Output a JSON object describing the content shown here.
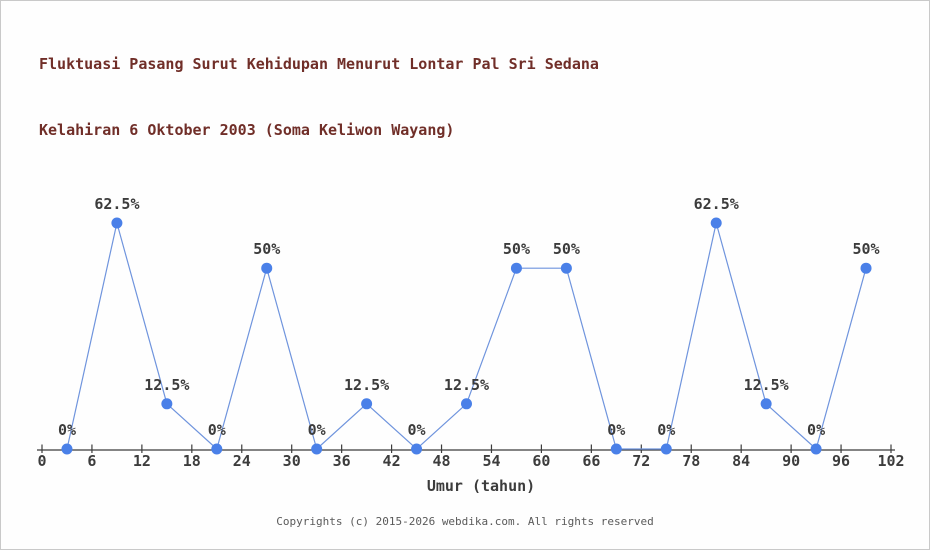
{
  "header": {
    "title_line1": "Fluktuasi Pasang Surut Kehidupan Menurut Lontar Pal Sri Sedana",
    "title_line2": "Kelahiran 6 Oktober 2003 (Soma Keliwon Wayang)"
  },
  "chart_data": {
    "type": "line",
    "x": [
      3,
      9,
      15,
      21,
      27,
      33,
      39,
      45,
      51,
      57,
      63,
      69,
      75,
      81,
      87,
      93,
      99
    ],
    "values": [
      0,
      62.5,
      12.5,
      0,
      50,
      0,
      12.5,
      0,
      12.5,
      50,
      50,
      0,
      0,
      62.5,
      12.5,
      0,
      50
    ],
    "point_labels": [
      "0%",
      "62.5%",
      "12.5%",
      "0%",
      "50%",
      "0%",
      "12.5%",
      "0%",
      "12.5%",
      "50%",
      "50%",
      "0%",
      "0%",
      "62.5%",
      "12.5%",
      "0%",
      "50%"
    ],
    "x_ticks": [
      0,
      6,
      12,
      18,
      24,
      30,
      36,
      42,
      48,
      54,
      60,
      66,
      72,
      78,
      84,
      90,
      96,
      102
    ],
    "xlabel": "Umur (tahun)",
    "xlim": [
      0,
      102
    ],
    "ylim": [
      0,
      100
    ],
    "grid": false,
    "legend": null,
    "colors": {
      "marker": "#4a80e8",
      "line": "#6f94dd",
      "axis": "#3c3c3c",
      "tick_label": "#3c3c3c",
      "point_label": "#3c3c3c",
      "title": "#702e28",
      "copyright": "#5a5a5a"
    }
  },
  "footer": {
    "copyright": "Copyrights (c) 2015-2026 webdika.com. All rights reserved"
  }
}
